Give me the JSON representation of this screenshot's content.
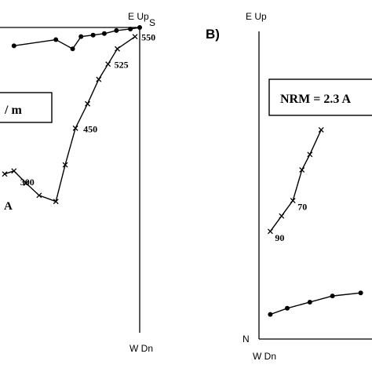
{
  "chart_data": [
    {
      "type": "scatter",
      "panel_label": "",
      "note_text": "/ m",
      "note_text_2": "A",
      "axis_labels": {
        "top": "E Up",
        "top_right": "S",
        "bottom": "W Dn"
      },
      "series": [
        {
          "marker": "circle",
          "points": [
            [
              -0.35,
              0.94
            ],
            [
              0.1,
              0.96
            ],
            [
              0.28,
              0.93
            ],
            [
              0.37,
              0.97
            ],
            [
              0.5,
              0.975
            ],
            [
              0.62,
              0.98
            ],
            [
              0.75,
              0.99
            ],
            [
              0.9,
              0.995
            ],
            [
              1.0,
              1.0
            ]
          ]
        },
        {
          "marker": "cross",
          "points": [
            [
              -0.45,
              0.52
            ],
            [
              -0.35,
              0.53
            ],
            [
              -0.22,
              0.49
            ],
            [
              -0.08,
              0.45
            ],
            [
              0.1,
              0.43
            ],
            [
              0.2,
              0.55
            ],
            [
              0.31,
              0.67
            ],
            [
              0.44,
              0.75
            ],
            [
              0.56,
              0.83
            ],
            [
              0.66,
              0.88
            ],
            [
              0.76,
              0.93
            ],
            [
              0.95,
              0.97
            ]
          ]
        }
      ],
      "point_labels": [
        {
          "text": "550",
          "series": 1,
          "point": 11
        },
        {
          "text": "525",
          "series": 1,
          "point": 9
        },
        {
          "text": "450",
          "series": 1,
          "point": 6
        },
        {
          "text": "300",
          "series": 1,
          "point": 1
        }
      ]
    },
    {
      "type": "scatter",
      "panel_label": "B)",
      "note_text": "NRM = 2.3 A",
      "axis_labels": {
        "top": "E Up",
        "bottom": "W Dn",
        "left": "N"
      },
      "series": [
        {
          "marker": "circle",
          "points": [
            [
              0.1,
              0.08
            ],
            [
              0.25,
              0.1
            ],
            [
              0.45,
              0.12
            ],
            [
              0.65,
              0.14
            ],
            [
              0.9,
              0.15
            ]
          ]
        },
        {
          "marker": "cross",
          "points": [
            [
              0.1,
              0.35
            ],
            [
              0.2,
              0.4
            ],
            [
              0.3,
              0.45
            ],
            [
              0.38,
              0.55
            ],
            [
              0.45,
              0.6
            ],
            [
              0.55,
              0.68
            ]
          ]
        }
      ],
      "point_labels": [
        {
          "text": "90",
          "series": 1,
          "point": 0
        },
        {
          "text": "70",
          "series": 1,
          "point": 2
        }
      ]
    }
  ]
}
